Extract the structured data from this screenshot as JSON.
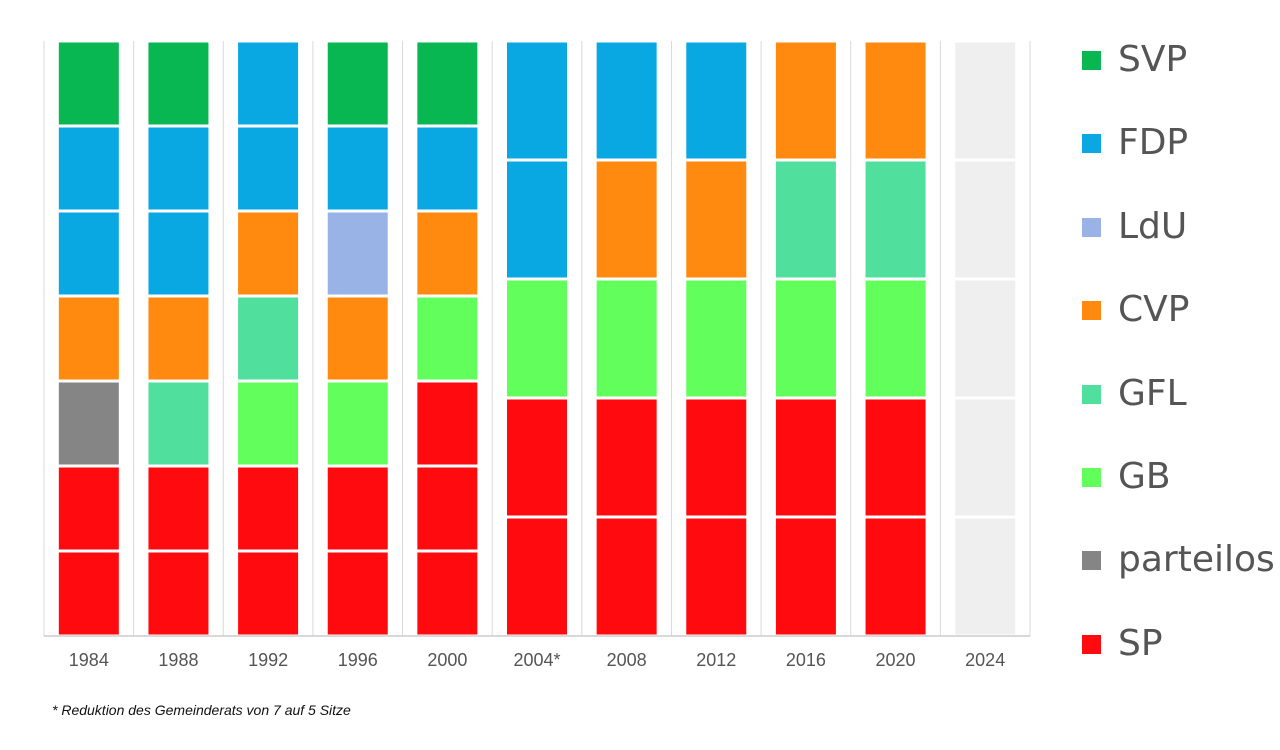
{
  "chart_data": {
    "type": "bar",
    "title": "",
    "xlabel": "",
    "ylabel": "",
    "categories": [
      "1984",
      "1988",
      "1992",
      "1996",
      "2000",
      "2004*",
      "2008",
      "2012",
      "2016",
      "2020",
      "2024"
    ],
    "seats": [
      [
        "SP",
        "SP",
        "parteilos",
        "CVP",
        "FDP",
        "FDP",
        "SVP"
      ],
      [
        "SP",
        "SP",
        "GFL",
        "CVP",
        "FDP",
        "FDP",
        "SVP"
      ],
      [
        "SP",
        "SP",
        "GB",
        "GFL",
        "CVP",
        "FDP",
        "FDP"
      ],
      [
        "SP",
        "SP",
        "GB",
        "CVP",
        "LdU",
        "FDP",
        "SVP"
      ],
      [
        "SP",
        "SP",
        "SP",
        "GB",
        "CVP",
        "FDP",
        "SVP"
      ],
      [
        "SP",
        "SP",
        "GB",
        "FDP",
        "FDP"
      ],
      [
        "SP",
        "SP",
        "GB",
        "CVP",
        "FDP"
      ],
      [
        "SP",
        "SP",
        "GB",
        "CVP",
        "FDP"
      ],
      [
        "SP",
        "SP",
        "GB",
        "GFL",
        "CVP"
      ],
      [
        "SP",
        "SP",
        "GB",
        "GFL",
        "CVP"
      ],
      [
        "",
        "",
        "",
        "",
        ""
      ]
    ],
    "seat_totals": [
      7,
      7,
      7,
      7,
      7,
      5,
      5,
      5,
      5,
      5,
      5
    ],
    "series": [
      {
        "name": "SVP",
        "values": [
          1,
          1,
          0,
          1,
          1,
          0,
          0,
          0,
          0,
          0,
          0
        ]
      },
      {
        "name": "FDP",
        "values": [
          2,
          2,
          2,
          1,
          1,
          2,
          1,
          1,
          0,
          0,
          0
        ]
      },
      {
        "name": "LdU",
        "values": [
          0,
          0,
          0,
          1,
          0,
          0,
          0,
          0,
          0,
          0,
          0
        ]
      },
      {
        "name": "CVP",
        "values": [
          1,
          1,
          1,
          1,
          1,
          0,
          1,
          1,
          1,
          1,
          0
        ]
      },
      {
        "name": "GFL",
        "values": [
          0,
          1,
          1,
          0,
          0,
          0,
          0,
          0,
          1,
          1,
          0
        ]
      },
      {
        "name": "GB",
        "values": [
          0,
          0,
          1,
          1,
          1,
          1,
          1,
          1,
          1,
          1,
          0
        ]
      },
      {
        "name": "parteilos",
        "values": [
          1,
          0,
          0,
          0,
          0,
          0,
          0,
          0,
          0,
          0,
          0
        ]
      },
      {
        "name": "SP",
        "values": [
          2,
          2,
          2,
          2,
          3,
          2,
          2,
          2,
          2,
          2,
          0
        ]
      }
    ],
    "colors": {
      "SVP": "#08b652",
      "FDP": "#0aa8e3",
      "LdU": "#9ab3e6",
      "CVP": "#ff8a0f",
      "GFL": "#50df9d",
      "GB": "#62ff5c",
      "parteilos": "#858585",
      "SP": "#ff0a0f",
      "empty": "#efefef"
    },
    "legend_position": "right",
    "footnote": "* Reduktion des Gemeinderats von 7 auf 5 Sitze"
  }
}
